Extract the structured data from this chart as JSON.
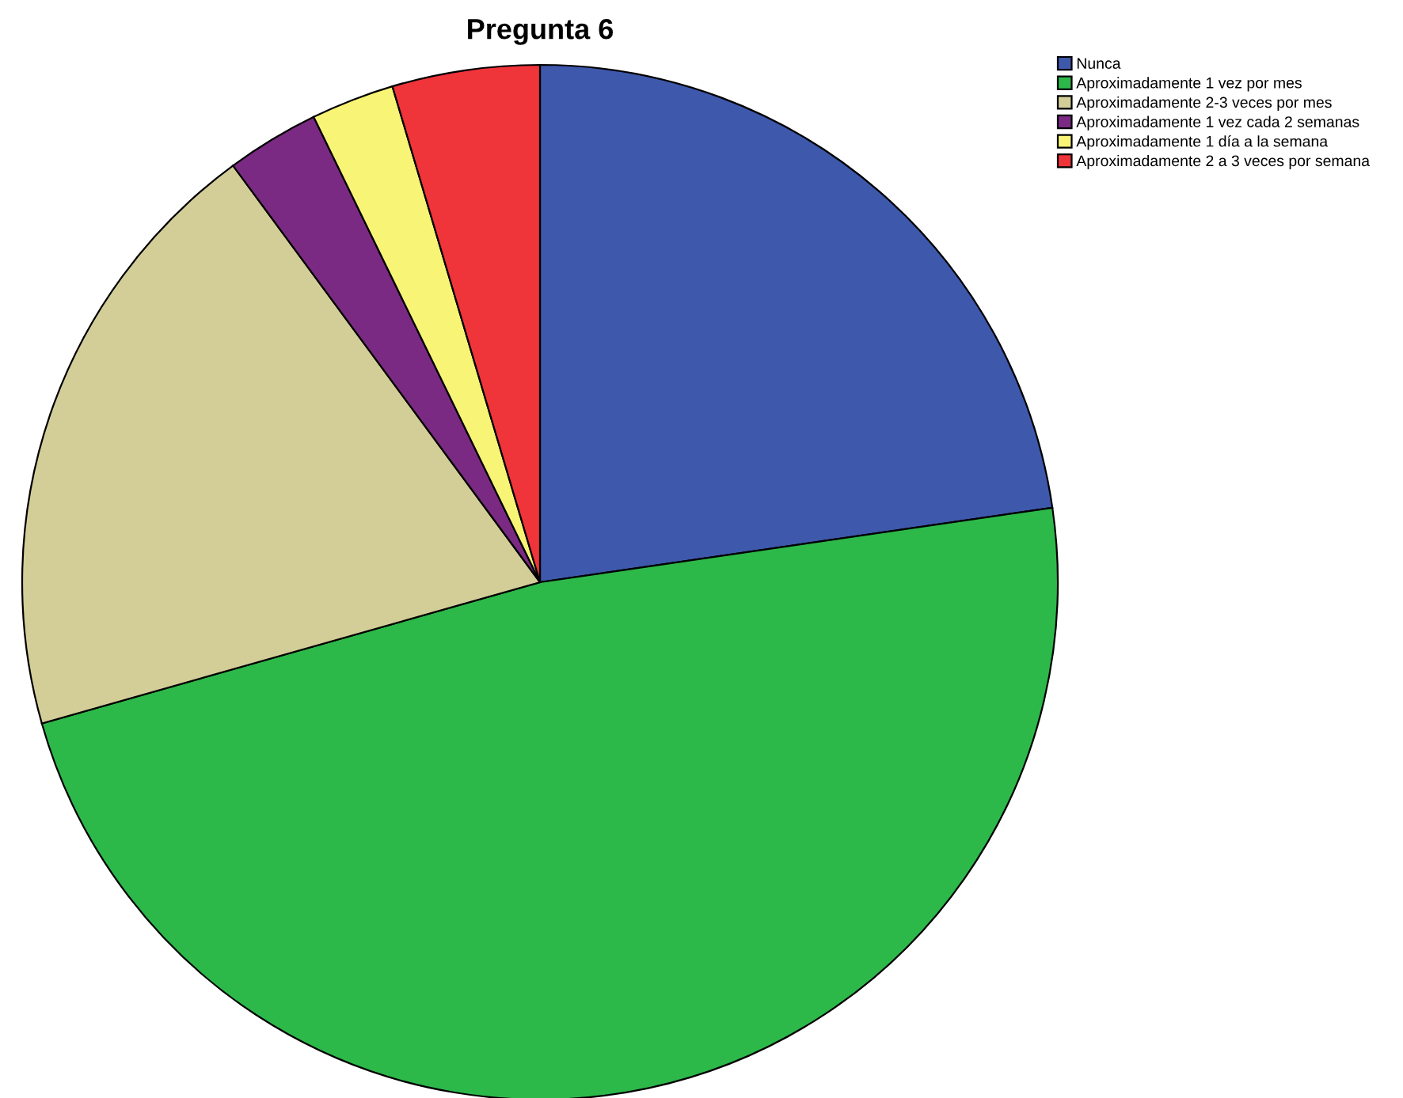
{
  "chart_data": {
    "type": "pie",
    "title": "Pregunta 6",
    "categories": [
      "Nunca",
      "Aproximadamente 1 vez por mes",
      "Aproximadamente 2-3 veces por mes",
      "Aproximadamente 1 vez cada 2 semanas",
      "Aproximadamente 1 día a la semana",
      "Aproximadamente 2 a 3 veces por semana"
    ],
    "values": [
      22.7,
      47.9,
      19.3,
      2.9,
      2.6,
      4.6
    ],
    "colors": [
      "#3e58ac",
      "#2db84a",
      "#d3ce98",
      "#7b2a83",
      "#f8f475",
      "#ef343a"
    ],
    "legend": "top right"
  }
}
